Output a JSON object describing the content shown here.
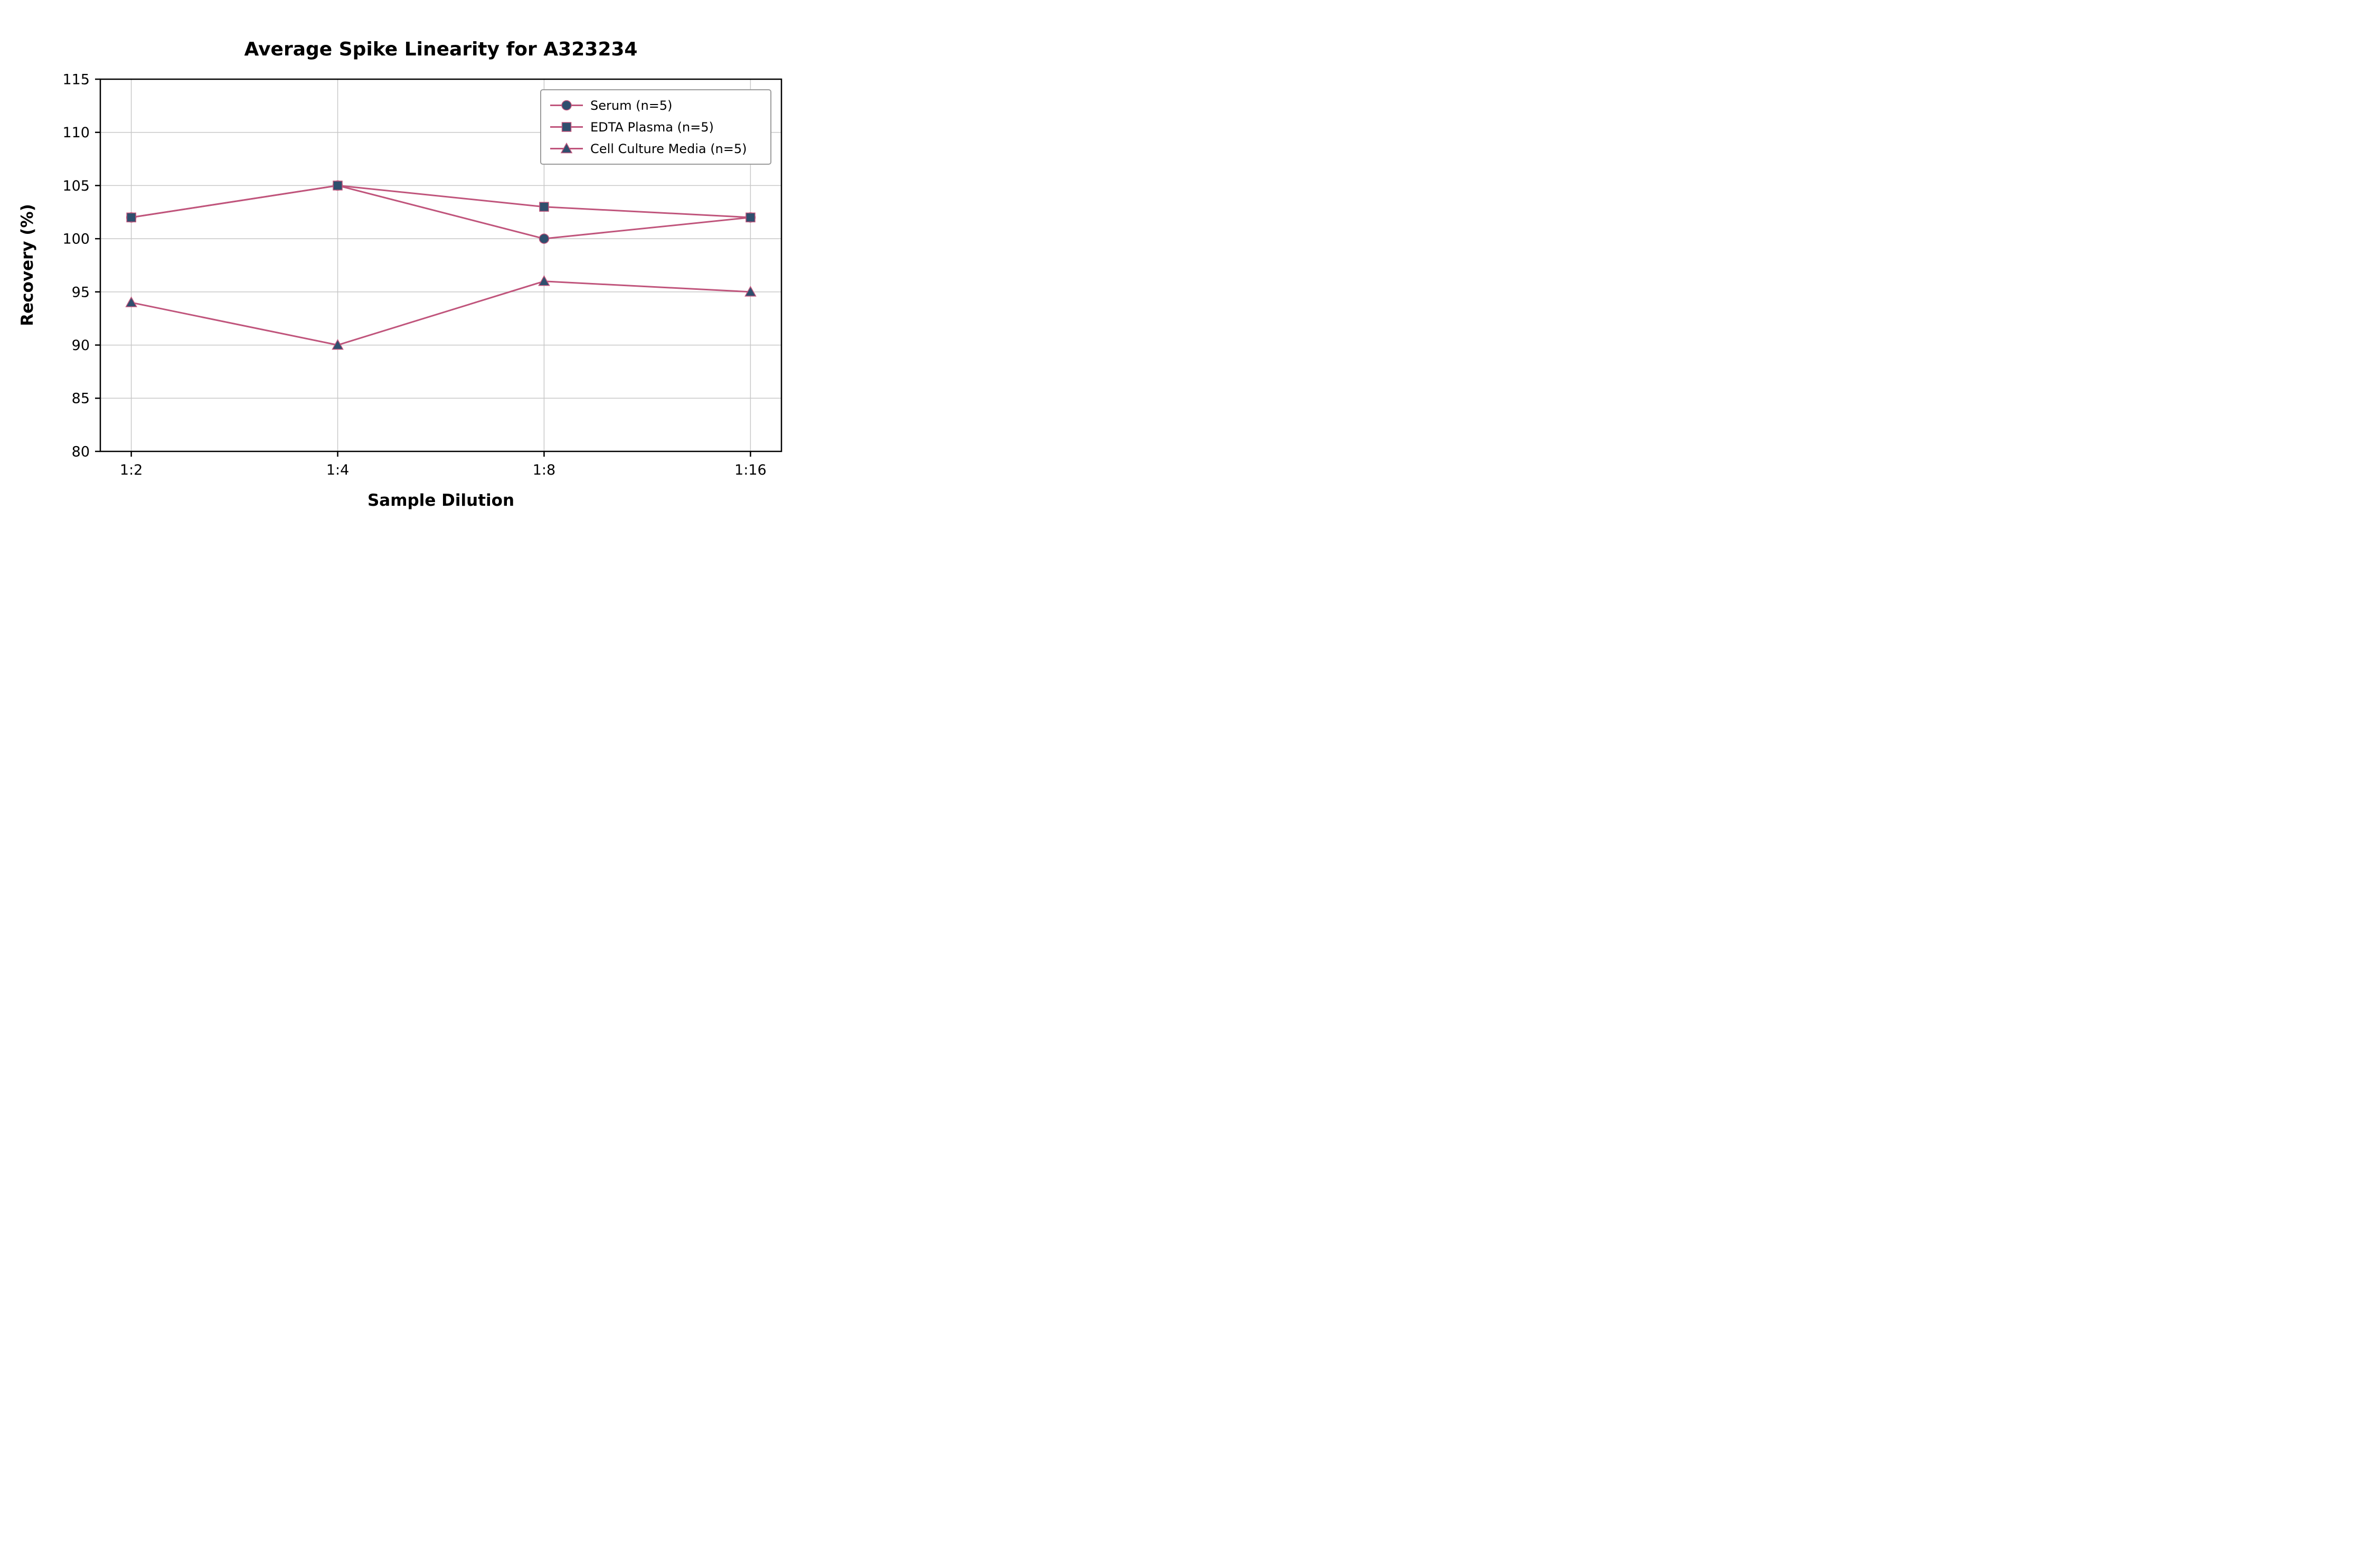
{
  "chart_data": {
    "type": "line",
    "title": "Average Spike Linearity for A323234",
    "xlabel": "Sample Dilution",
    "ylabel": "Recovery (%)",
    "categories": [
      "1:2",
      "1:4",
      "1:8",
      "1:16"
    ],
    "ylim": [
      80,
      115
    ],
    "yticks": [
      80,
      85,
      90,
      95,
      100,
      105,
      110,
      115
    ],
    "grid": true,
    "legend_position": "upper right",
    "series": [
      {
        "name": "Serum (n=5)",
        "marker": "circle",
        "values": [
          102,
          105,
          100,
          102
        ]
      },
      {
        "name": "EDTA Plasma (n=5)",
        "marker": "square",
        "values": [
          102,
          105,
          103,
          102
        ]
      },
      {
        "name": "Cell Culture Media (n=5)",
        "marker": "triangle",
        "values": [
          94,
          90,
          96,
          95
        ]
      }
    ],
    "colors": {
      "line": "#c0557c",
      "marker": "#2f4f6e",
      "grid": "#c8c8c8",
      "spine": "#000000",
      "legend_border": "#9b9b9b"
    }
  }
}
